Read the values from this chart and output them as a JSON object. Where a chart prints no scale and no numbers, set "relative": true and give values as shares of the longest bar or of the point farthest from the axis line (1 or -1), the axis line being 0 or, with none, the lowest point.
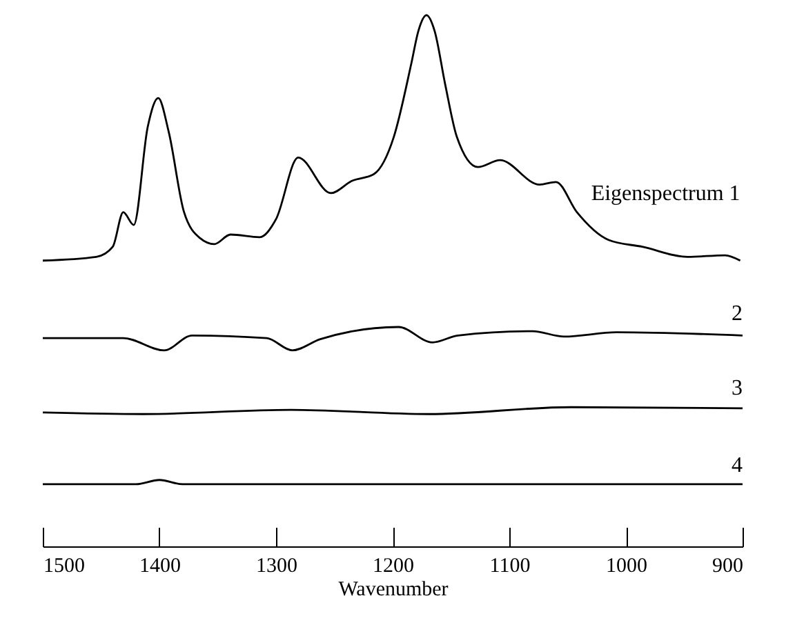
{
  "chart_data": {
    "type": "line",
    "xlabel": "Wavenumber",
    "relative": true,
    "xlim": [
      1500,
      900
    ],
    "xticks": [
      1500,
      1400,
      1300,
      1200,
      1100,
      1000,
      900
    ],
    "legend": false,
    "grid": false,
    "series": [
      {
        "name": "Eigenspectrum 1",
        "color": "#000000",
        "x": [
          1500,
          1454,
          1440,
          1431,
          1422,
          1410,
          1401,
          1392,
          1379,
          1365,
          1353,
          1339,
          1314,
          1300,
          1281,
          1253,
          1235,
          1216,
          1199,
          1184,
          1178,
          1171,
          1164,
          1155,
          1145,
          1127,
          1108,
          1074,
          1060,
          1042,
          1015,
          986,
          947,
          915,
          902
        ],
        "values": [
          0.538,
          0.545,
          0.564,
          0.629,
          0.605,
          0.79,
          0.844,
          0.78,
          0.63,
          0.58,
          0.569,
          0.587,
          0.582,
          0.616,
          0.732,
          0.665,
          0.688,
          0.701,
          0.771,
          0.909,
          0.97,
          1,
          0.97,
          0.87,
          0.771,
          0.714,
          0.727,
          0.681,
          0.686,
          0.629,
          0.577,
          0.564,
          0.545,
          0.548,
          0.538
        ]
      },
      {
        "name": "2",
        "color": "#000000",
        "x": [
          1500,
          1431,
          1396,
          1372,
          1308,
          1286,
          1262,
          1195,
          1166,
          1144,
          1080,
          1053,
          1008,
          900
        ],
        "values": [
          0.392,
          0.392,
          0.369,
          0.397,
          0.392,
          0.369,
          0.39,
          0.413,
          0.384,
          0.397,
          0.405,
          0.395,
          0.403,
          0.397
        ]
      },
      {
        "name": "3",
        "color": "#000000",
        "x": [
          1500,
          1414,
          1287,
          1169,
          1047,
          900
        ],
        "values": [
          0.252,
          0.249,
          0.257,
          0.249,
          0.262,
          0.26
        ]
      },
      {
        "name": "4",
        "color": "#000000",
        "x": [
          1500,
          1420,
          1400,
          1380,
          900
        ],
        "values": [
          0.117,
          0.117,
          0.125,
          0.117,
          0.117
        ]
      }
    ]
  }
}
